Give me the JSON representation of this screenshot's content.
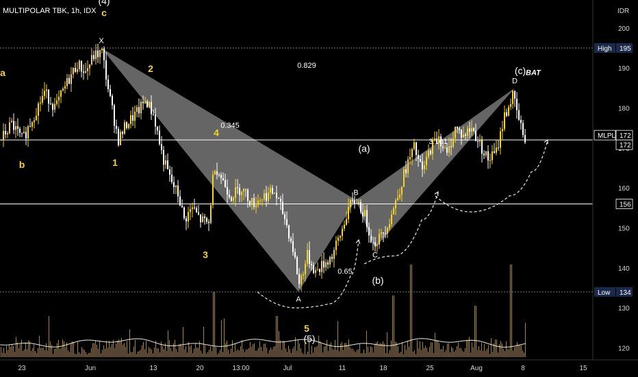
{
  "header": {
    "title": "MULTIPOLAR TBK, 1h, IDX",
    "currency": "IDR"
  },
  "colors": {
    "background": "#000000",
    "candle": "#f5d327",
    "candle_alt": "#ffffff",
    "volume": "#c9a21a",
    "pattern_fill": "#8c8c8c",
    "level_line": "#ffffff",
    "wave_label": "#f5d327"
  },
  "chart_data": {
    "type": "candlestick",
    "y_axis": {
      "ticks": [
        120,
        130,
        140,
        150,
        160,
        170,
        180,
        190,
        200
      ],
      "range": [
        117,
        207
      ],
      "position": "right"
    },
    "x_axis": {
      "ticks": [
        {
          "label": "23",
          "t": 0.04
        },
        {
          "label": "Jun",
          "t": 0.165
        },
        {
          "label": "13",
          "t": 0.28
        },
        {
          "label": "20",
          "t": 0.365
        },
        {
          "label": "13:00",
          "t": 0.44
        },
        {
          "label": "Jul",
          "t": 0.525
        },
        {
          "label": "11",
          "t": 0.625
        },
        {
          "label": "18",
          "t": 0.7
        },
        {
          "label": "25",
          "t": 0.785
        },
        {
          "label": "Aug",
          "t": 0.87
        },
        {
          "label": "8",
          "t": 0.955
        },
        {
          "label": "15",
          "t": 1.065
        }
      ]
    },
    "levels": [
      {
        "name": "high",
        "label": "High",
        "value": 195
      },
      {
        "name": "price",
        "label": "MLPL",
        "value": 172
      },
      {
        "name": "last",
        "label": "",
        "value": 172
      },
      {
        "name": "support",
        "label": "",
        "value": 156
      },
      {
        "name": "low",
        "label": "Low",
        "value": 134
      }
    ],
    "price_path": [
      {
        "t": 0.0,
        "p": 172
      },
      {
        "t": 0.02,
        "p": 176
      },
      {
        "t": 0.04,
        "p": 172
      },
      {
        "t": 0.06,
        "p": 178
      },
      {
        "t": 0.08,
        "p": 184
      },
      {
        "t": 0.1,
        "p": 180
      },
      {
        "t": 0.12,
        "p": 186
      },
      {
        "t": 0.14,
        "p": 191
      },
      {
        "t": 0.155,
        "p": 189
      },
      {
        "t": 0.17,
        "p": 193
      },
      {
        "t": 0.185,
        "p": 194
      },
      {
        "t": 0.2,
        "p": 182
      },
      {
        "t": 0.215,
        "p": 172
      },
      {
        "t": 0.23,
        "p": 176
      },
      {
        "t": 0.25,
        "p": 179
      },
      {
        "t": 0.265,
        "p": 182
      },
      {
        "t": 0.28,
        "p": 178
      },
      {
        "t": 0.295,
        "p": 168
      },
      {
        "t": 0.31,
        "p": 162
      },
      {
        "t": 0.325,
        "p": 158
      },
      {
        "t": 0.335,
        "p": 152
      },
      {
        "t": 0.35,
        "p": 155
      },
      {
        "t": 0.365,
        "p": 152
      },
      {
        "t": 0.38,
        "p": 151
      },
      {
        "t": 0.39,
        "p": 166
      },
      {
        "t": 0.405,
        "p": 162
      },
      {
        "t": 0.42,
        "p": 158
      },
      {
        "t": 0.44,
        "p": 160
      },
      {
        "t": 0.46,
        "p": 156
      },
      {
        "t": 0.48,
        "p": 158
      },
      {
        "t": 0.5,
        "p": 159
      },
      {
        "t": 0.52,
        "p": 152
      },
      {
        "t": 0.535,
        "p": 144
      },
      {
        "t": 0.545,
        "p": 136
      },
      {
        "t": 0.56,
        "p": 143
      },
      {
        "t": 0.575,
        "p": 139
      },
      {
        "t": 0.59,
        "p": 141
      },
      {
        "t": 0.605,
        "p": 143
      },
      {
        "t": 0.62,
        "p": 148
      },
      {
        "t": 0.635,
        "p": 155
      },
      {
        "t": 0.65,
        "p": 157
      },
      {
        "t": 0.665,
        "p": 153
      },
      {
        "t": 0.68,
        "p": 146
      },
      {
        "t": 0.695,
        "p": 148
      },
      {
        "t": 0.71,
        "p": 152
      },
      {
        "t": 0.725,
        "p": 158
      },
      {
        "t": 0.74,
        "p": 165
      },
      {
        "t": 0.755,
        "p": 170
      },
      {
        "t": 0.77,
        "p": 164
      },
      {
        "t": 0.785,
        "p": 170
      },
      {
        "t": 0.8,
        "p": 173
      },
      {
        "t": 0.815,
        "p": 168
      },
      {
        "t": 0.83,
        "p": 175
      },
      {
        "t": 0.845,
        "p": 173
      },
      {
        "t": 0.86,
        "p": 175
      },
      {
        "t": 0.875,
        "p": 171
      },
      {
        "t": 0.89,
        "p": 167
      },
      {
        "t": 0.905,
        "p": 169
      },
      {
        "t": 0.92,
        "p": 178
      },
      {
        "t": 0.935,
        "p": 183
      },
      {
        "t": 0.95,
        "p": 175
      },
      {
        "t": 0.96,
        "p": 172
      }
    ],
    "harmonic_pattern": {
      "name": "BAT",
      "points": [
        {
          "label": "X",
          "t": 0.185,
          "p": 195
        },
        {
          "label": "A",
          "t": 0.545,
          "p": 134
        },
        {
          "label": "B",
          "t": 0.65,
          "p": 157
        },
        {
          "label": "C",
          "t": 0.685,
          "p": 145
        },
        {
          "label": "D",
          "t": 0.94,
          "p": 185
        }
      ],
      "ratios": [
        {
          "text": "0.829",
          "t": 0.56,
          "p": 190
        },
        {
          "text": "0.345",
          "t": 0.42,
          "p": 175
        },
        {
          "text": "0.65",
          "t": 0.63,
          "p": 138.5
        },
        {
          "text": "3.161",
          "t": 0.8,
          "p": 171
        }
      ]
    },
    "wave_labels": [
      {
        "text": "(4)",
        "t": 0.19,
        "p": 206,
        "style": "white"
      },
      {
        "text": "c",
        "t": 0.19,
        "p": 203,
        "style": "yellow"
      },
      {
        "text": "a",
        "t": 0.005,
        "p": 188,
        "style": "yellow"
      },
      {
        "text": "b",
        "t": 0.04,
        "p": 165,
        "style": "yellow"
      },
      {
        "text": "2",
        "t": 0.275,
        "p": 189,
        "style": "yellow"
      },
      {
        "text": "1",
        "t": 0.21,
        "p": 165.5,
        "style": "yellow"
      },
      {
        "text": "4",
        "t": 0.395,
        "p": 173,
        "style": "yellow"
      },
      {
        "text": "3",
        "t": 0.375,
        "p": 142.5,
        "style": "yellow"
      },
      {
        "text": "(a)",
        "t": 0.665,
        "p": 169,
        "style": "white"
      },
      {
        "text": "(b)",
        "t": 0.69,
        "p": 136,
        "style": "white"
      },
      {
        "text": "5",
        "t": 0.56,
        "p": 124,
        "style": "yellow"
      },
      {
        "text": "(5)",
        "t": 0.565,
        "p": 121.5,
        "style": "white"
      },
      {
        "text": "(c)",
        "t": 0.95,
        "p": 188.5,
        "style": "white"
      }
    ],
    "projection_paths": [
      {
        "name": "wave-a-projection",
        "points": [
          {
            "t": 0.47,
            "p": 134
          },
          {
            "t": 0.54,
            "p": 130
          },
          {
            "t": 0.6,
            "p": 131
          },
          {
            "t": 0.64,
            "p": 138
          },
          {
            "t": 0.655,
            "p": 147
          }
        ]
      },
      {
        "name": "wave-b-projection",
        "points": [
          {
            "t": 0.665,
            "p": 141
          },
          {
            "t": 0.72,
            "p": 143
          },
          {
            "t": 0.77,
            "p": 152
          },
          {
            "t": 0.8,
            "p": 159
          }
        ]
      },
      {
        "name": "wave-c-projection",
        "points": [
          {
            "t": 0.795,
            "p": 158
          },
          {
            "t": 0.86,
            "p": 154
          },
          {
            "t": 0.93,
            "p": 158
          },
          {
            "t": 0.97,
            "p": 164
          },
          {
            "t": 1.0,
            "p": 172
          }
        ]
      }
    ]
  }
}
